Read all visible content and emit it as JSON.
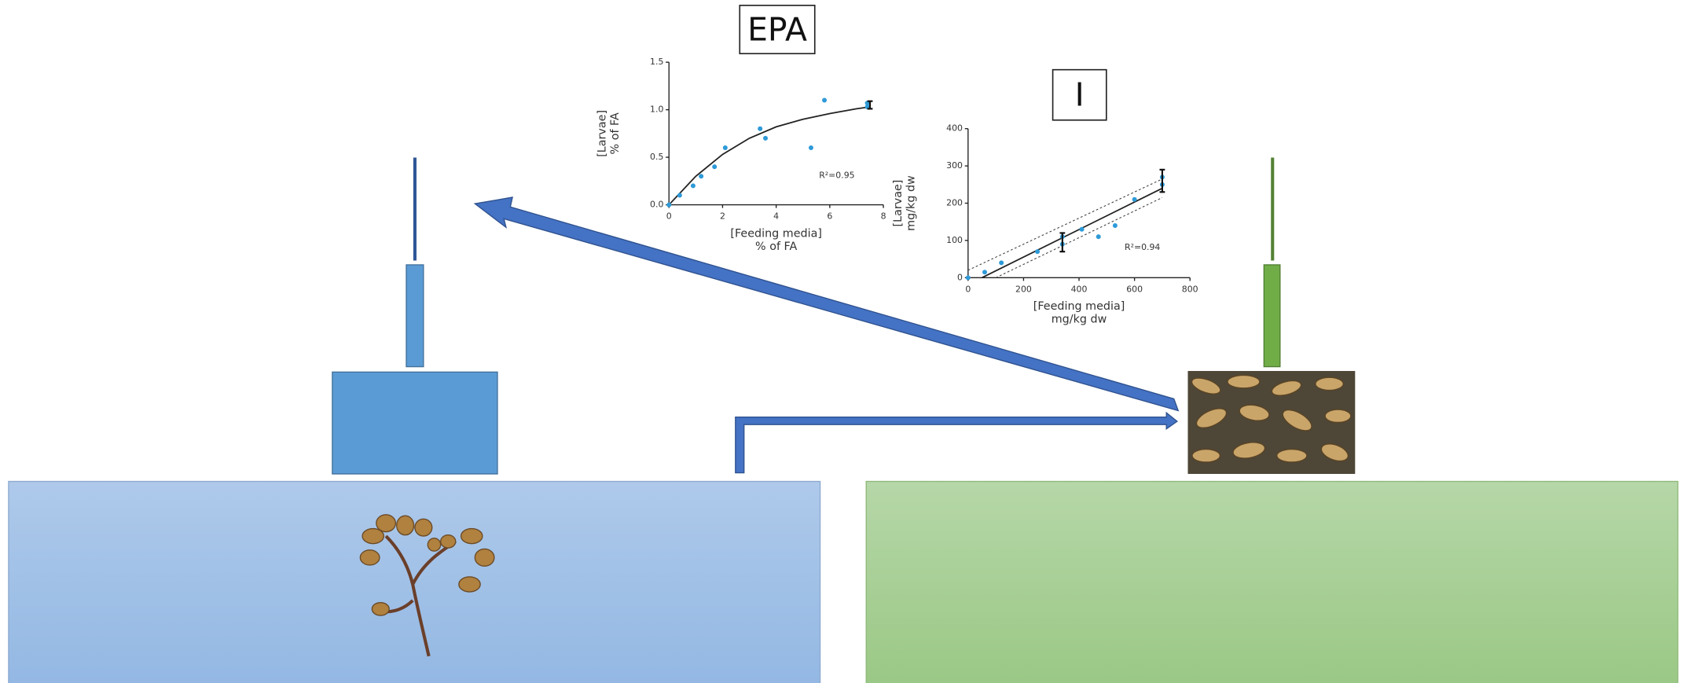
{
  "chart_data": [
    {
      "type": "scatter",
      "title": "EPA",
      "color": "#2e9ad8",
      "xlabel": [
        "[Feeding media]",
        "% of FA"
      ],
      "ylabel": [
        "[Larvae]",
        "% of FA"
      ],
      "annotation": "R²=0.95",
      "xlim": [
        0,
        8
      ],
      "ylim": [
        0,
        1.5
      ],
      "xticks": [
        0,
        2,
        4,
        6,
        8
      ],
      "yticks": [
        {
          "value": 0,
          "label": "0.0"
        },
        {
          "value": 0.5,
          "label": "0.5"
        },
        {
          "value": 1,
          "label": "1.0"
        },
        {
          "value": 1.5,
          "label": "1.5"
        }
      ],
      "points": {
        "x": [
          0,
          0.4,
          0.9,
          1.2,
          1.7,
          2.1,
          3.4,
          3.6,
          5.3,
          5.8,
          7.4,
          7.4
        ],
        "y": [
          0,
          0.1,
          0.2,
          0.3,
          0.4,
          0.6,
          0.8,
          0.7,
          0.6,
          1.1,
          1.03,
          1.07
        ]
      },
      "fit": {
        "x": [
          0,
          1,
          2,
          3,
          4,
          5,
          6,
          7,
          7.5
        ],
        "y": [
          0,
          0.3,
          0.53,
          0.7,
          0.82,
          0.9,
          0.96,
          1.01,
          1.03
        ]
      },
      "error_bars": {
        "x": [
          7.5
        ],
        "y": [
          1.05
        ],
        "err": [
          0.04
        ]
      }
    },
    {
      "type": "scatter",
      "title": "I",
      "color": "#2e9ad8",
      "xlabel": [
        "[Feeding media]",
        "mg/kg dw"
      ],
      "ylabel": [
        "[Larvae]",
        "mg/kg dw"
      ],
      "annotation": "R²=0.94",
      "xlim": [
        0,
        800
      ],
      "ylim": [
        0,
        400
      ],
      "xticks": [
        0,
        200,
        400,
        600,
        800
      ],
      "yticks": [
        0,
        100,
        200,
        300,
        400
      ],
      "points": {
        "x": [
          0,
          60,
          120,
          250,
          340,
          340,
          410,
          470,
          530,
          600,
          700,
          700
        ],
        "y": [
          0,
          15,
          40,
          70,
          90,
          110,
          130,
          110,
          140,
          210,
          250,
          270
        ]
      },
      "fit": {
        "x": [
          50,
          700
        ],
        "y": [
          0,
          240
        ]
      },
      "band_upper": {
        "x": [
          0,
          700
        ],
        "y": [
          20,
          265
        ]
      },
      "band_lower": {
        "x": [
          100,
          700
        ],
        "y": [
          0,
          215
        ]
      },
      "error_bars": {
        "x": [
          340,
          700
        ],
        "y": [
          95,
          260
        ],
        "err": [
          25,
          30
        ]
      }
    }
  ]
}
